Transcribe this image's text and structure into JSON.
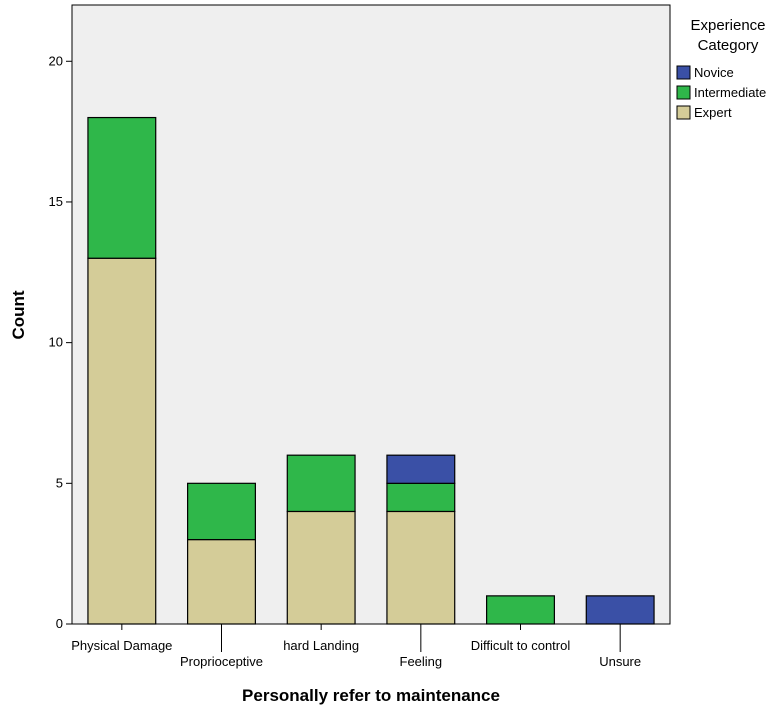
{
  "chart_data": {
    "type": "bar",
    "stacked": true,
    "xlabel": "Personally refer to maintenance",
    "ylabel": "Count",
    "ylim": [
      0,
      22
    ],
    "yticks": [
      0,
      5,
      10,
      15,
      20
    ],
    "grid": false,
    "categories": [
      "Physical Damage",
      "Proprioceptive",
      "hard Landing",
      "Feeling",
      "Difficult to control",
      "Unsure"
    ],
    "series": [
      {
        "name": "Expert",
        "color": "#d4cc98",
        "values": [
          13,
          3,
          4,
          4,
          0,
          0
        ]
      },
      {
        "name": "Intermediate",
        "color": "#2fb74a",
        "values": [
          5,
          2,
          2,
          1,
          1,
          0
        ]
      },
      {
        "name": "Novice",
        "color": "#3a50a6",
        "values": [
          0,
          0,
          0,
          1,
          0,
          1
        ]
      }
    ],
    "legend": {
      "title_line1": "Experience",
      "title_line2": "Category",
      "placement": "right",
      "order": [
        "Novice",
        "Intermediate",
        "Expert"
      ]
    },
    "plot_background": "#efefef"
  }
}
